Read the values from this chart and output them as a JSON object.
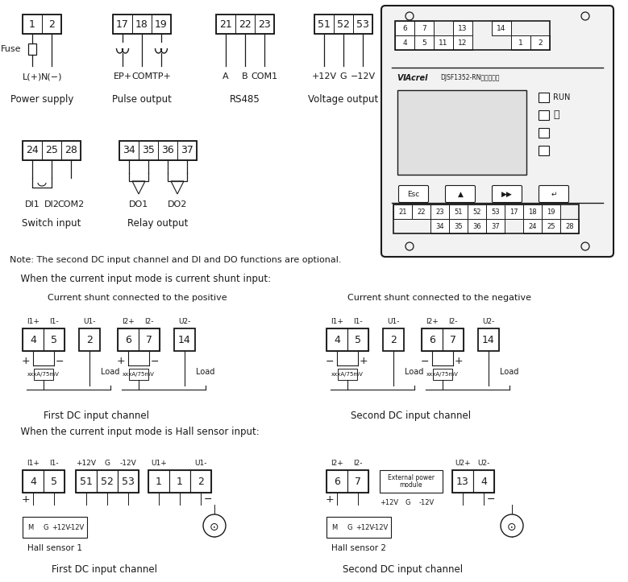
{
  "bg": "#ffffff",
  "lc": "#1a1a1a",
  "note": "Note: The second DC input channel and DI and DO functions are optional.",
  "s1_label": "  When the current input mode is current shunt input:",
  "s2_label": "  When the current input mode is Hall sensor input:",
  "cs_pos_title": "Current shunt connected to the positive",
  "cs_neg_title": "Current shunt connected to the negative",
  "first_ch": "First DC input channel",
  "second_ch": "Second DC input channel",
  "fig_w": 7.79,
  "fig_h": 7.23
}
